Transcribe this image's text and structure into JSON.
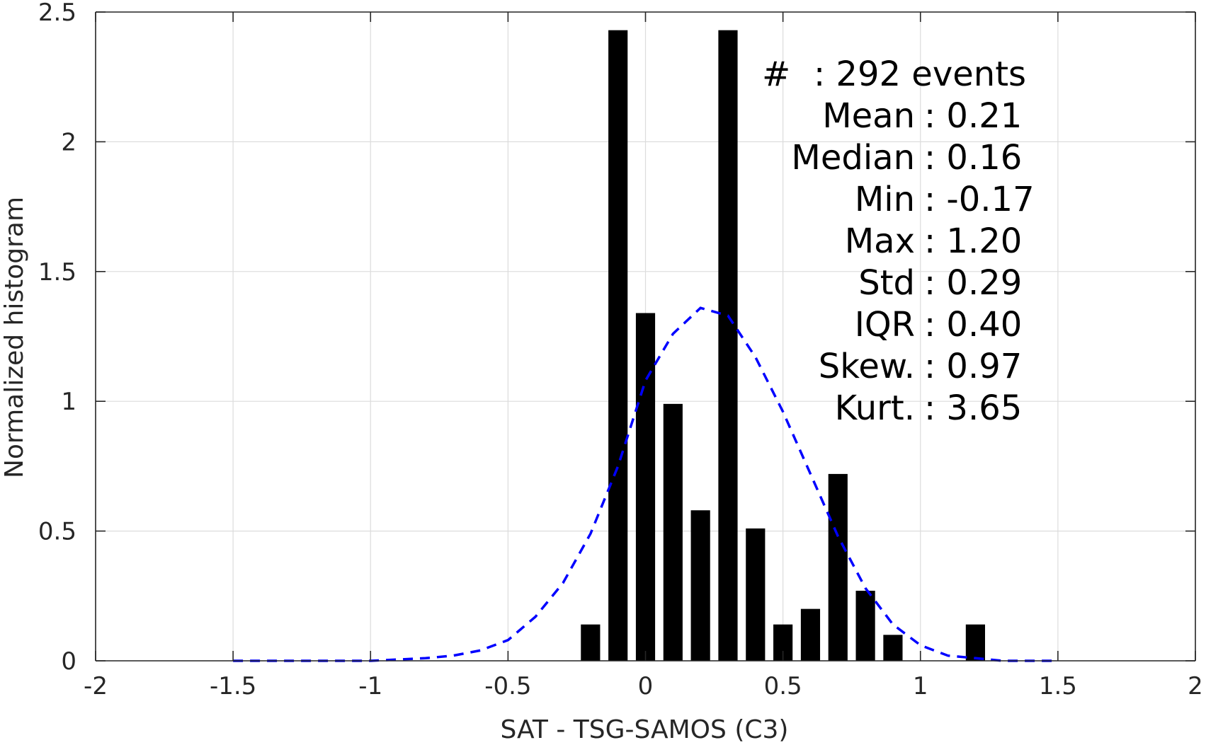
{
  "chart_data": {
    "type": "bar",
    "xlabel": "SAT - TSG-SAMOS (C3)",
    "ylabel": "Normalized histogram",
    "xlim": [
      -2,
      2
    ],
    "ylim": [
      0,
      2.5
    ],
    "x_ticks": [
      "-2",
      "-1.5",
      "-1",
      "-0.5",
      "0",
      "0.5",
      "1",
      "1.5",
      "2"
    ],
    "y_ticks": [
      "0",
      "0.5",
      "1",
      "1.5",
      "2",
      "2.5"
    ],
    "grid": true,
    "bar_width": 0.07,
    "histogram": {
      "x": [
        -0.2,
        -0.1,
        0.0,
        0.1,
        0.2,
        0.3,
        0.4,
        0.5,
        0.6,
        0.7,
        0.8,
        0.9,
        1.2
      ],
      "values": [
        0.14,
        2.43,
        1.34,
        0.99,
        0.58,
        2.43,
        0.51,
        0.14,
        0.2,
        0.72,
        0.27,
        0.1,
        0.14
      ]
    },
    "fit_curve": {
      "style": "dashed",
      "color": "#0000ff",
      "x": [
        -1.5,
        -1.2,
        -1.0,
        -0.8,
        -0.7,
        -0.6,
        -0.5,
        -0.4,
        -0.3,
        -0.2,
        -0.1,
        0.0,
        0.1,
        0.2,
        0.3,
        0.4,
        0.5,
        0.6,
        0.7,
        0.8,
        0.9,
        1.0,
        1.1,
        1.2,
        1.3,
        1.5
      ],
      "y": [
        0.0,
        0.0,
        0.0,
        0.01,
        0.02,
        0.04,
        0.08,
        0.17,
        0.3,
        0.49,
        0.75,
        1.08,
        1.26,
        1.36,
        1.33,
        1.17,
        0.96,
        0.72,
        0.48,
        0.28,
        0.14,
        0.06,
        0.02,
        0.01,
        0.0,
        0.0
      ]
    },
    "stats": {
      "count": {
        "label": "#  ",
        "value": ": 292 events"
      },
      "rows": [
        {
          "label": "Mean",
          "value": ": 0.21"
        },
        {
          "label": "Median",
          "value": ": 0.16"
        },
        {
          "label": "Min",
          "value": ": -0.17"
        },
        {
          "label": "Max",
          "value": ": 1.20"
        },
        {
          "label": "Std",
          "value": ": 0.29"
        },
        {
          "label": "IQR",
          "value": ": 0.40"
        },
        {
          "label": "Skew.",
          "value": ": 0.97"
        },
        {
          "label": "Kurt.",
          "value": ": 3.65"
        }
      ]
    }
  }
}
